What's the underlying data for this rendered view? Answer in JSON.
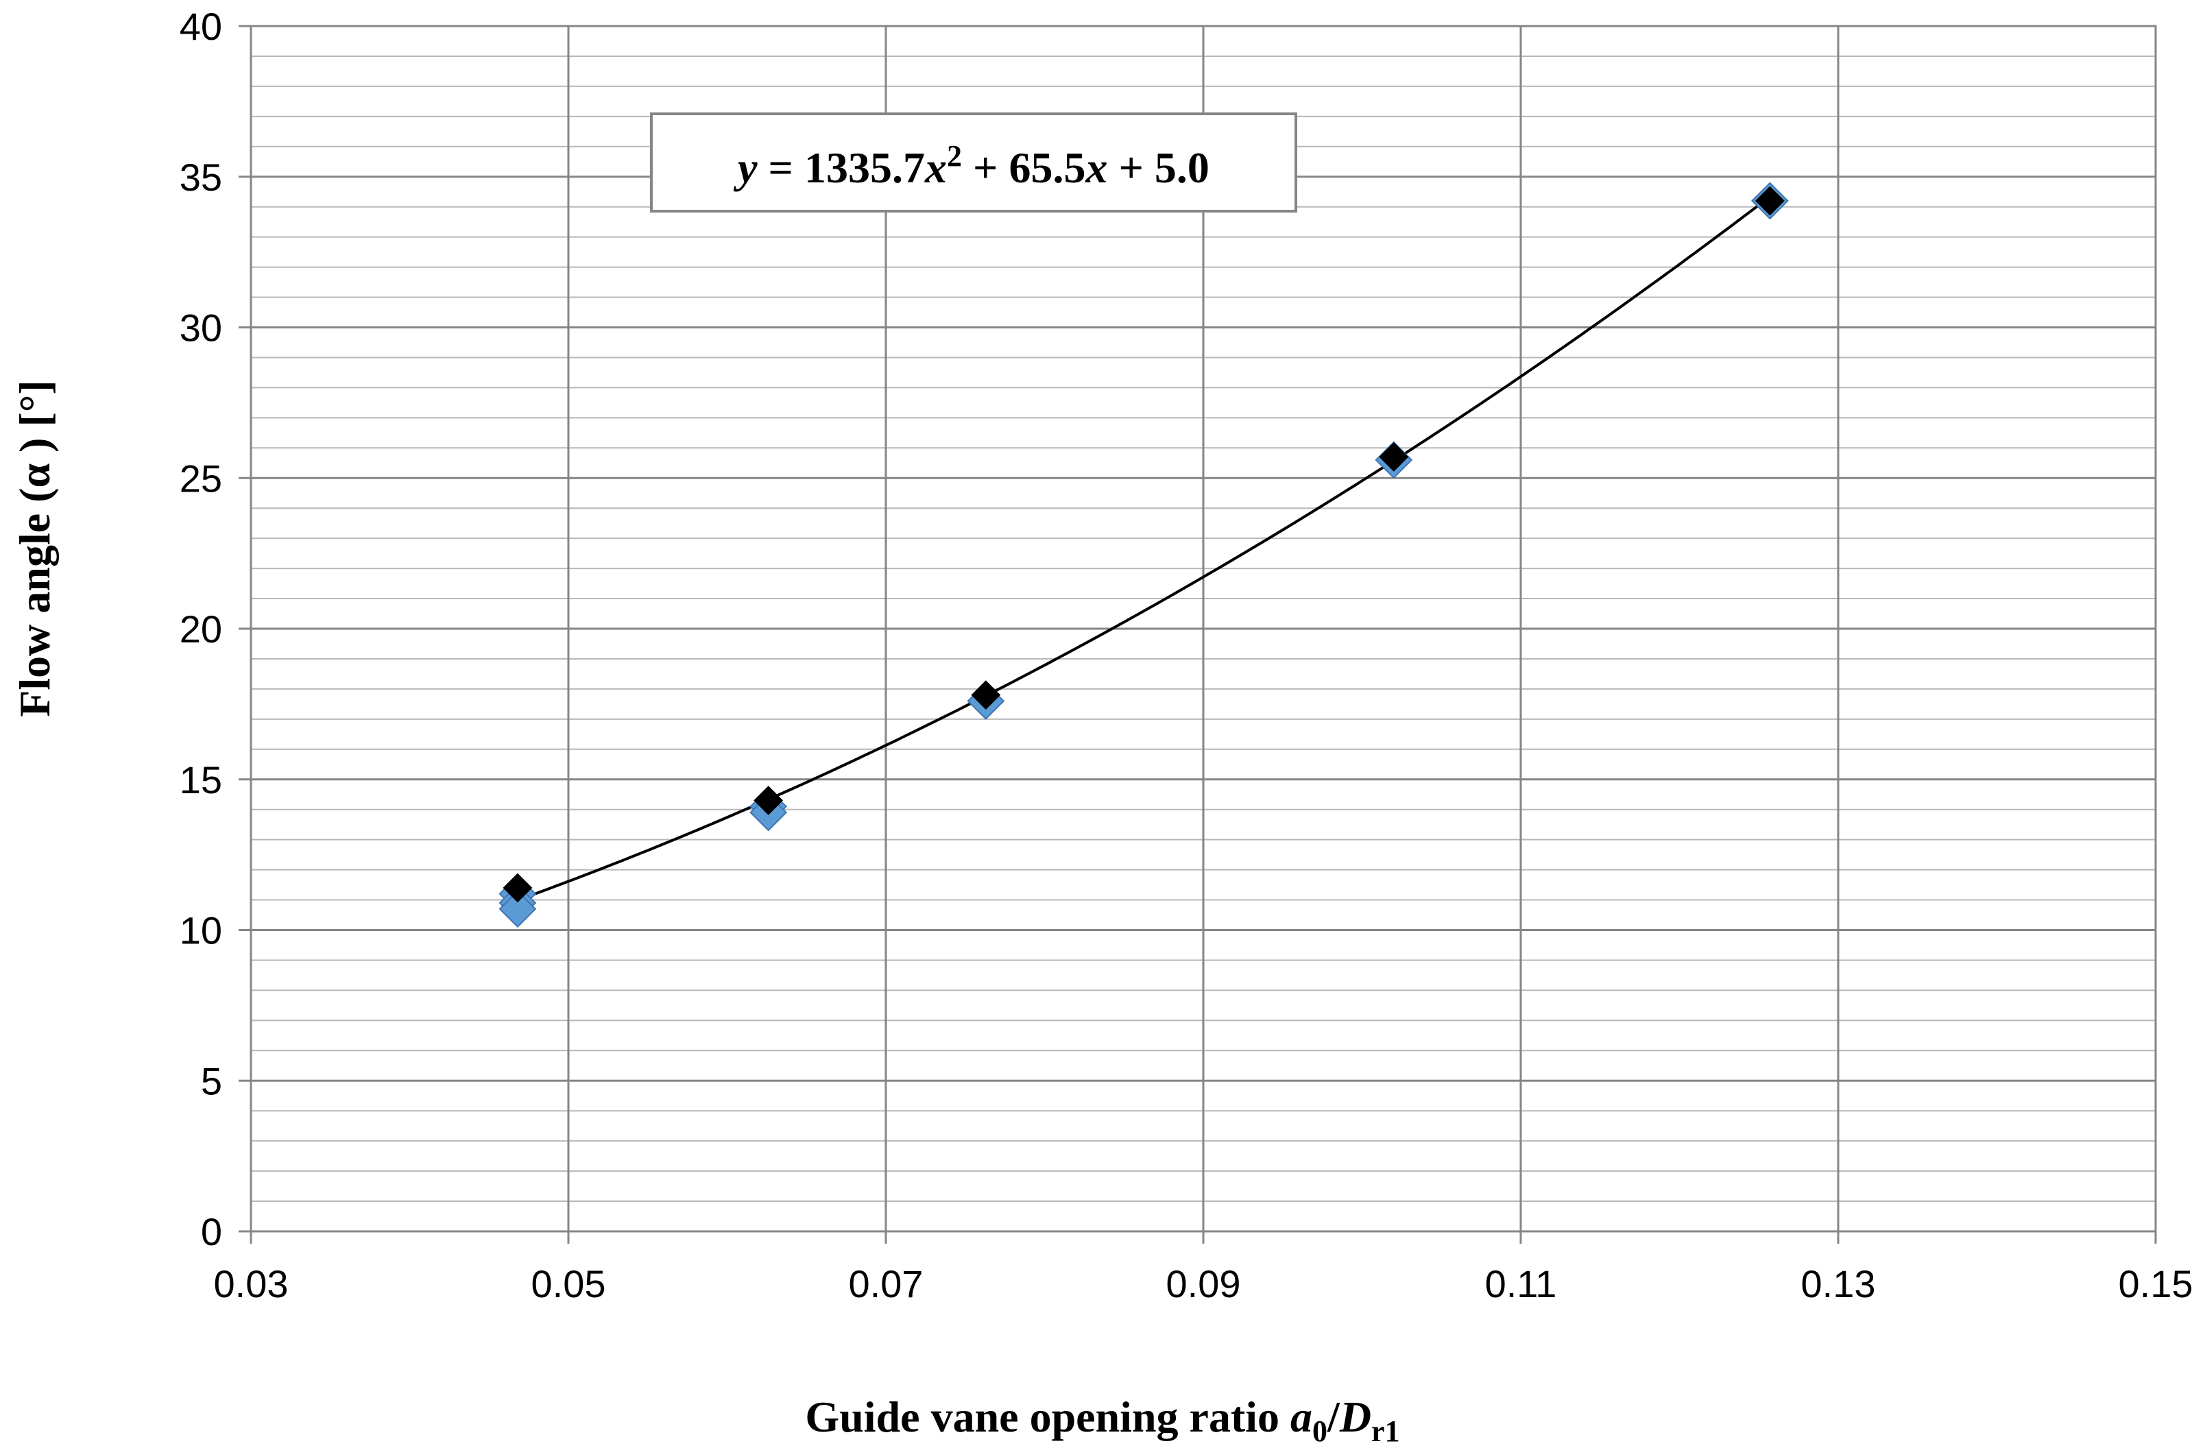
{
  "chart_data": {
    "type": "scatter",
    "xlabel": {
      "prefix": "Guide vane opening ratio ",
      "a": "a",
      "a_sub": "0",
      "slash": "/",
      "d": "D",
      "d_sub": "r1"
    },
    "ylabel": "Flow angle (α ) [°]",
    "xlim": [
      0.03,
      0.15
    ],
    "ylim": [
      0,
      40
    ],
    "x_major_ticks": [
      "0.03",
      "0.05",
      "0.07",
      "0.09",
      "0.11",
      "0.13",
      "0.15"
    ],
    "y_major_ticks": [
      "0",
      "5",
      "10",
      "15",
      "20",
      "25",
      "30",
      "35",
      "40"
    ],
    "x_major_step": 0.02,
    "y_major_step": 5,
    "y_minor_step": 1,
    "grid": true,
    "series": [
      {
        "marker": "diamond",
        "color": "#5b9bd5",
        "x": [
          0.0468,
          0.0468,
          0.0468,
          0.0626,
          0.0626,
          0.0763,
          0.102,
          0.1257
        ],
        "y": [
          11.2,
          10.9,
          10.7,
          14.1,
          13.9,
          17.6,
          25.6,
          34.2
        ]
      },
      {
        "marker": "diamond",
        "color": "#000000",
        "x": [
          0.0468,
          0.0626,
          0.0763,
          0.102,
          0.1257
        ],
        "y": [
          11.4,
          14.3,
          17.8,
          25.7,
          34.2
        ]
      }
    ],
    "trendline": {
      "type": "polynomial",
      "coefficients": [
        1335.7,
        65.5,
        5.0
      ],
      "x_range": [
        0.0468,
        0.1257
      ],
      "color": "#000000"
    },
    "equation": {
      "y": "y",
      "eq1": " = 1335.7",
      "x1": "x",
      "sup": "2",
      "eq2": " + 65.5",
      "x2": "x",
      "eq3": " + 5.0"
    }
  }
}
